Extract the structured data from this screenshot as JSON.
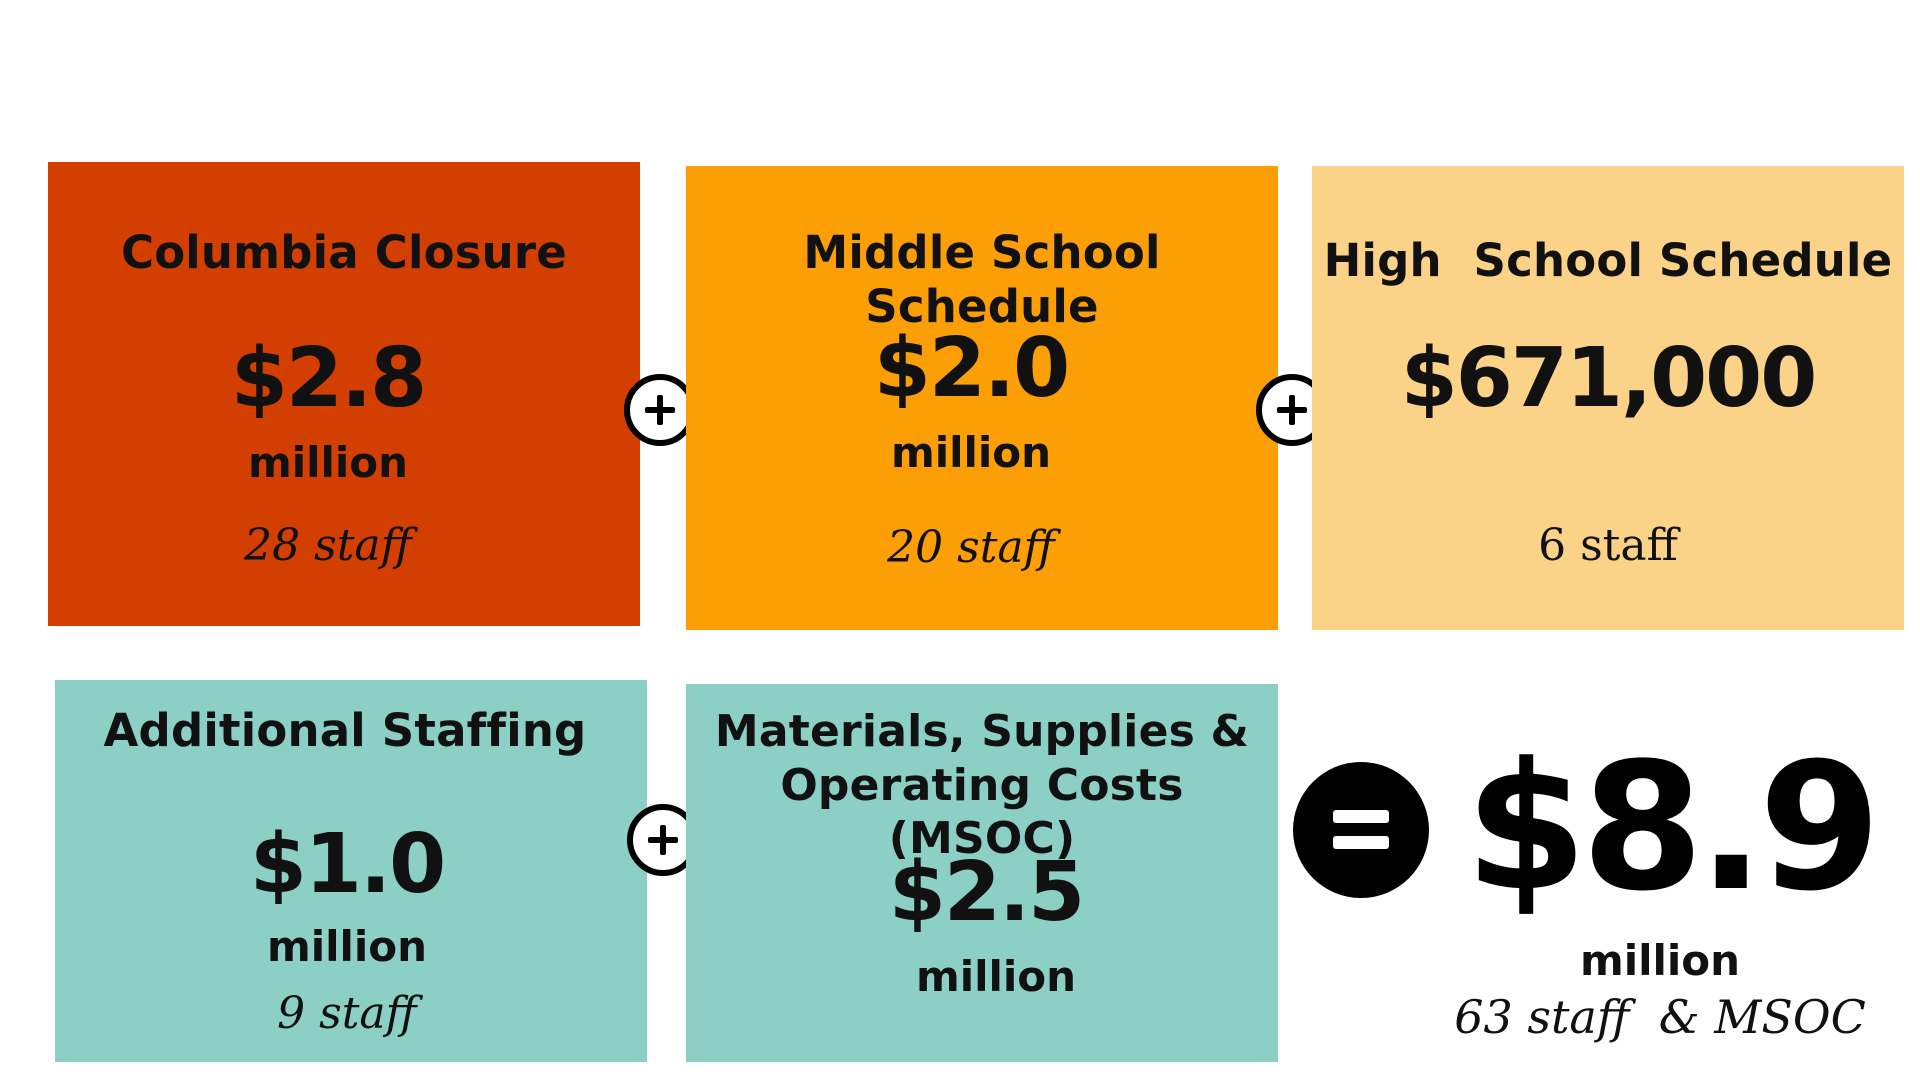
{
  "colors": {
    "columbia": "#d23f00",
    "middle": "#fc9e06",
    "high": "#fad288",
    "teal": "#8ccfc4",
    "operator": "#000000"
  },
  "cards": {
    "columbia": {
      "title": "Columbia Closure",
      "amount": "$2.8",
      "unit": "million",
      "staff": "28 staff"
    },
    "middle_school": {
      "title": "Middle School Schedule",
      "amount": "$2.0",
      "unit": "million",
      "staff": "20 staff"
    },
    "high_school": {
      "title": "High  School Schedule",
      "amount": "$671,000",
      "staff": "6 staff"
    },
    "additional_staffing": {
      "title": "Additional Staffing",
      "amount": "$1.0",
      "unit": "million",
      "staff": "9 staff"
    },
    "msoc": {
      "title_line1": "Materials, Supplies &",
      "title_line2": "Operating Costs (MSOC)",
      "amount": "$2.5",
      "unit": "million"
    }
  },
  "total": {
    "amount": "$8.9",
    "unit": "million",
    "staff": "63 staff  & MSOC"
  },
  "operators": {
    "plus_icon": "circled-plus",
    "equals_icon": "circled-equals"
  }
}
